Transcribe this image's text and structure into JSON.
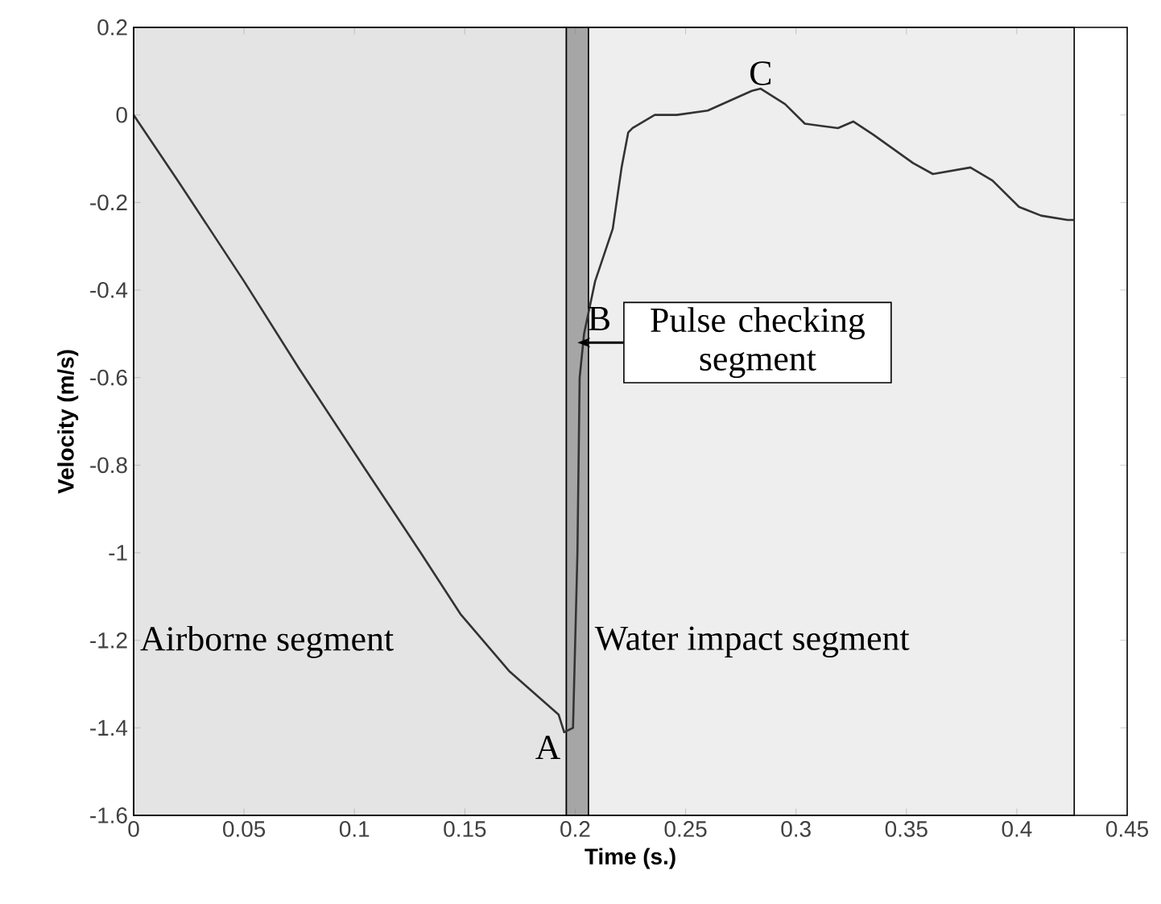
{
  "chart_data": {
    "type": "line",
    "xlabel": "Time (s.)",
    "ylabel": "Velocity (m/s)",
    "xlim": [
      0,
      0.45
    ],
    "ylim": [
      -1.6,
      0.2
    ],
    "xticks": [
      0,
      0.05,
      0.1,
      0.15,
      0.2,
      0.25,
      0.3,
      0.35,
      0.4,
      0.45
    ],
    "yticks": [
      -1.6,
      -1.4,
      -1.2,
      -1,
      -0.8,
      -0.6,
      -0.4,
      -0.2,
      0,
      0.2
    ],
    "series": [
      {
        "color": "#333333",
        "x": [
          0,
          0.02,
          0.05,
          0.075,
          0.105,
          0.13,
          0.148,
          0.17,
          0.1925,
          0.195,
          0.199,
          0.201,
          0.202,
          0.204,
          0.209,
          0.217,
          0.221,
          0.224,
          0.226,
          0.236,
          0.246,
          0.26,
          0.28,
          0.284,
          0.295,
          0.304,
          0.319,
          0.326,
          0.335,
          0.353,
          0.362,
          0.379,
          0.389,
          0.401,
          0.411,
          0.423,
          0.426
        ],
        "values": [
          0,
          -0.15,
          -0.38,
          -0.58,
          -0.81,
          -1.0,
          -1.14,
          -1.27,
          -1.37,
          -1.41,
          -1.4,
          -1.0,
          -0.6,
          -0.5,
          -0.38,
          -0.26,
          -0.12,
          -0.04,
          -0.03,
          0.0,
          0.0,
          0.01,
          0.055,
          0.06,
          0.025,
          -0.02,
          -0.03,
          -0.015,
          -0.045,
          -0.11,
          -0.135,
          -0.12,
          -0.15,
          -0.21,
          -0.23,
          -0.24,
          -0.24
        ]
      }
    ],
    "bands": [
      {
        "axis": "x",
        "from": 0,
        "to": 0.196,
        "label": "Airborne segment",
        "color": "#e4e4e4"
      },
      {
        "axis": "x",
        "from": 0.196,
        "to": 0.206,
        "label": "Pulse checking segment",
        "color": "#a6a6a6"
      },
      {
        "axis": "x",
        "from": 0.206,
        "to": 0.426,
        "label": "Water impact segment",
        "color": "#eeeeee"
      }
    ],
    "annotations": [
      {
        "text": "A",
        "x": 0.195,
        "y": -1.41
      },
      {
        "text": "B",
        "x": 0.204,
        "y": -0.5
      },
      {
        "text": "C",
        "x": 0.284,
        "y": 0.06
      }
    ]
  }
}
